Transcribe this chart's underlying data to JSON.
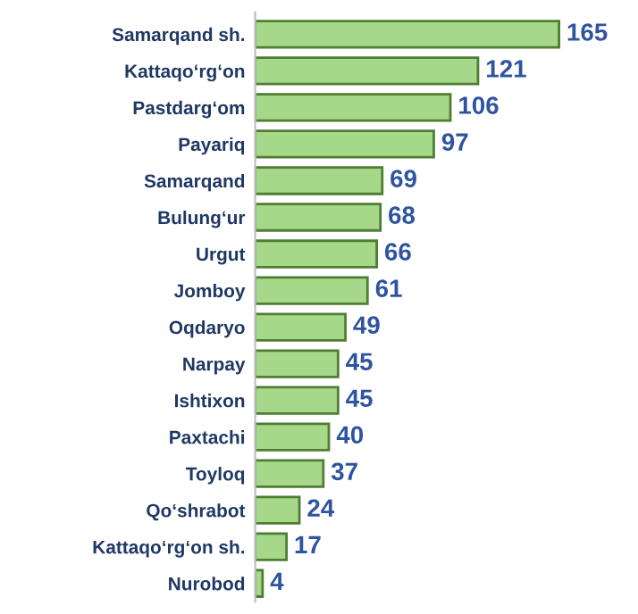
{
  "chart_data": {
    "type": "bar",
    "orientation": "horizontal",
    "categories": [
      "Samarqand sh.",
      "Kattaqo‘rg‘on",
      "Pastdarg‘om",
      "Payariq",
      "Samarqand",
      "Bulung‘ur",
      "Urgut",
      "Jomboy",
      "Oqdaryo",
      "Narpay",
      "Ishtixon",
      "Paxtachi",
      "Toyloq",
      "Qo‘shrabot",
      "Kattaqo‘rg‘on sh.",
      "Nurobod"
    ],
    "values": [
      165,
      121,
      106,
      97,
      69,
      68,
      66,
      61,
      49,
      45,
      45,
      40,
      37,
      24,
      17,
      4
    ],
    "color": "#a6d88a",
    "data_labels": true,
    "grid": false,
    "legend": false
  }
}
